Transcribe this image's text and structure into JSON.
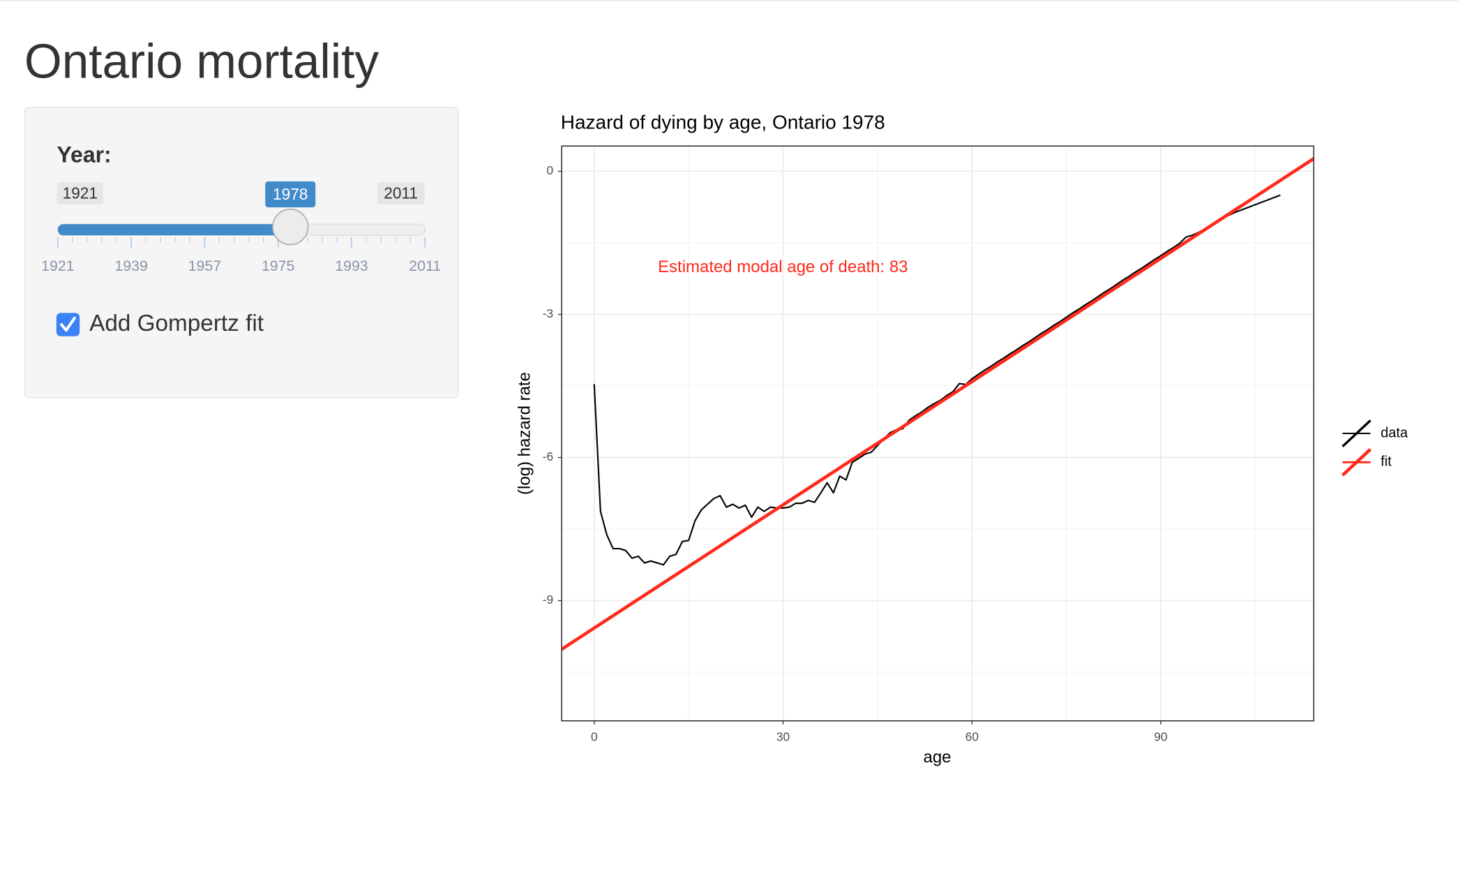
{
  "header": {
    "title": "Ontario mortality"
  },
  "controls": {
    "year": {
      "label": "Year:",
      "min": 1921,
      "max": 2011,
      "value": 1978,
      "ticks": [
        1921,
        1939,
        1957,
        1975,
        1993,
        2011
      ]
    },
    "gompertz": {
      "label": "Add Gompertz fit",
      "checked": true
    }
  },
  "chart_data": {
    "type": "line",
    "title": "Hazard of dying by age, Ontario 1978",
    "x_label": "age",
    "y_label": "(log) hazard rate",
    "annotation": "Estimated modal age of death: 83",
    "annotation_color": "#ff2a1a",
    "xlim": [
      -5.17,
      114.3
    ],
    "ylim": [
      -11.52,
      0.53
    ],
    "xticks": [
      0,
      30,
      60,
      90
    ],
    "yticks": [
      -9,
      -6,
      -3,
      0
    ],
    "grid": true,
    "minor_grid": true,
    "legend": "right",
    "series": [
      {
        "name": "data",
        "color": "#000000",
        "x": [
          0,
          1,
          2,
          3,
          4,
          5,
          6,
          7,
          8,
          9,
          10,
          11,
          12,
          13,
          14,
          15,
          16,
          17,
          18,
          19,
          20,
          21,
          22,
          23,
          24,
          25,
          26,
          27,
          28,
          29,
          30,
          31,
          32,
          33,
          34,
          35,
          36,
          37,
          38,
          39,
          40,
          41,
          42,
          43,
          44,
          45,
          46,
          47,
          48,
          49,
          50,
          51,
          52,
          53,
          54,
          55,
          56,
          57,
          58,
          59,
          60,
          61,
          62,
          63,
          64,
          65,
          66,
          67,
          68,
          69,
          70,
          71,
          72,
          73,
          74,
          75,
          76,
          77,
          78,
          79,
          80,
          81,
          82,
          83,
          84,
          85,
          86,
          87,
          88,
          89,
          90,
          91,
          92,
          93,
          94,
          95,
          96,
          97,
          98,
          99,
          100,
          101,
          102,
          103,
          104,
          105,
          106,
          107,
          108,
          109
        ],
        "values": [
          -4.46,
          -7.13,
          -7.62,
          -7.91,
          -7.91,
          -7.95,
          -8.11,
          -8.07,
          -8.21,
          -8.17,
          -8.21,
          -8.25,
          -8.07,
          -8.03,
          -7.76,
          -7.74,
          -7.33,
          -7.1,
          -6.98,
          -6.86,
          -6.8,
          -7.04,
          -6.98,
          -7.06,
          -7.0,
          -7.25,
          -7.04,
          -7.13,
          -7.04,
          -7.06,
          -7.06,
          -7.04,
          -6.96,
          -6.96,
          -6.9,
          -6.94,
          -6.74,
          -6.53,
          -6.74,
          -6.39,
          -6.47,
          -6.1,
          -6.02,
          -5.93,
          -5.89,
          -5.75,
          -5.61,
          -5.48,
          -5.42,
          -5.4,
          -5.22,
          -5.13,
          -5.05,
          -4.95,
          -4.87,
          -4.8,
          -4.7,
          -4.62,
          -4.45,
          -4.47,
          -4.35,
          -4.26,
          -4.17,
          -4.09,
          -4.0,
          -3.92,
          -3.83,
          -3.75,
          -3.66,
          -3.58,
          -3.49,
          -3.4,
          -3.32,
          -3.23,
          -3.15,
          -3.06,
          -2.97,
          -2.89,
          -2.8,
          -2.72,
          -2.63,
          -2.54,
          -2.46,
          -2.37,
          -2.28,
          -2.2,
          -2.11,
          -2.03,
          -1.94,
          -1.85,
          -1.77,
          -1.68,
          -1.6,
          -1.51,
          -1.38,
          -1.34,
          -1.28,
          -1.21,
          -1.13,
          -1.05,
          -0.97,
          -0.91,
          -0.85,
          -0.8,
          -0.75,
          -0.7,
          -0.65,
          -0.6,
          -0.55,
          -0.5
        ]
      },
      {
        "name": "fit",
        "color": "#ff2a1a",
        "x": [
          -10,
          120
        ],
        "values": [
          -10.436,
          0.757
        ]
      }
    ]
  }
}
